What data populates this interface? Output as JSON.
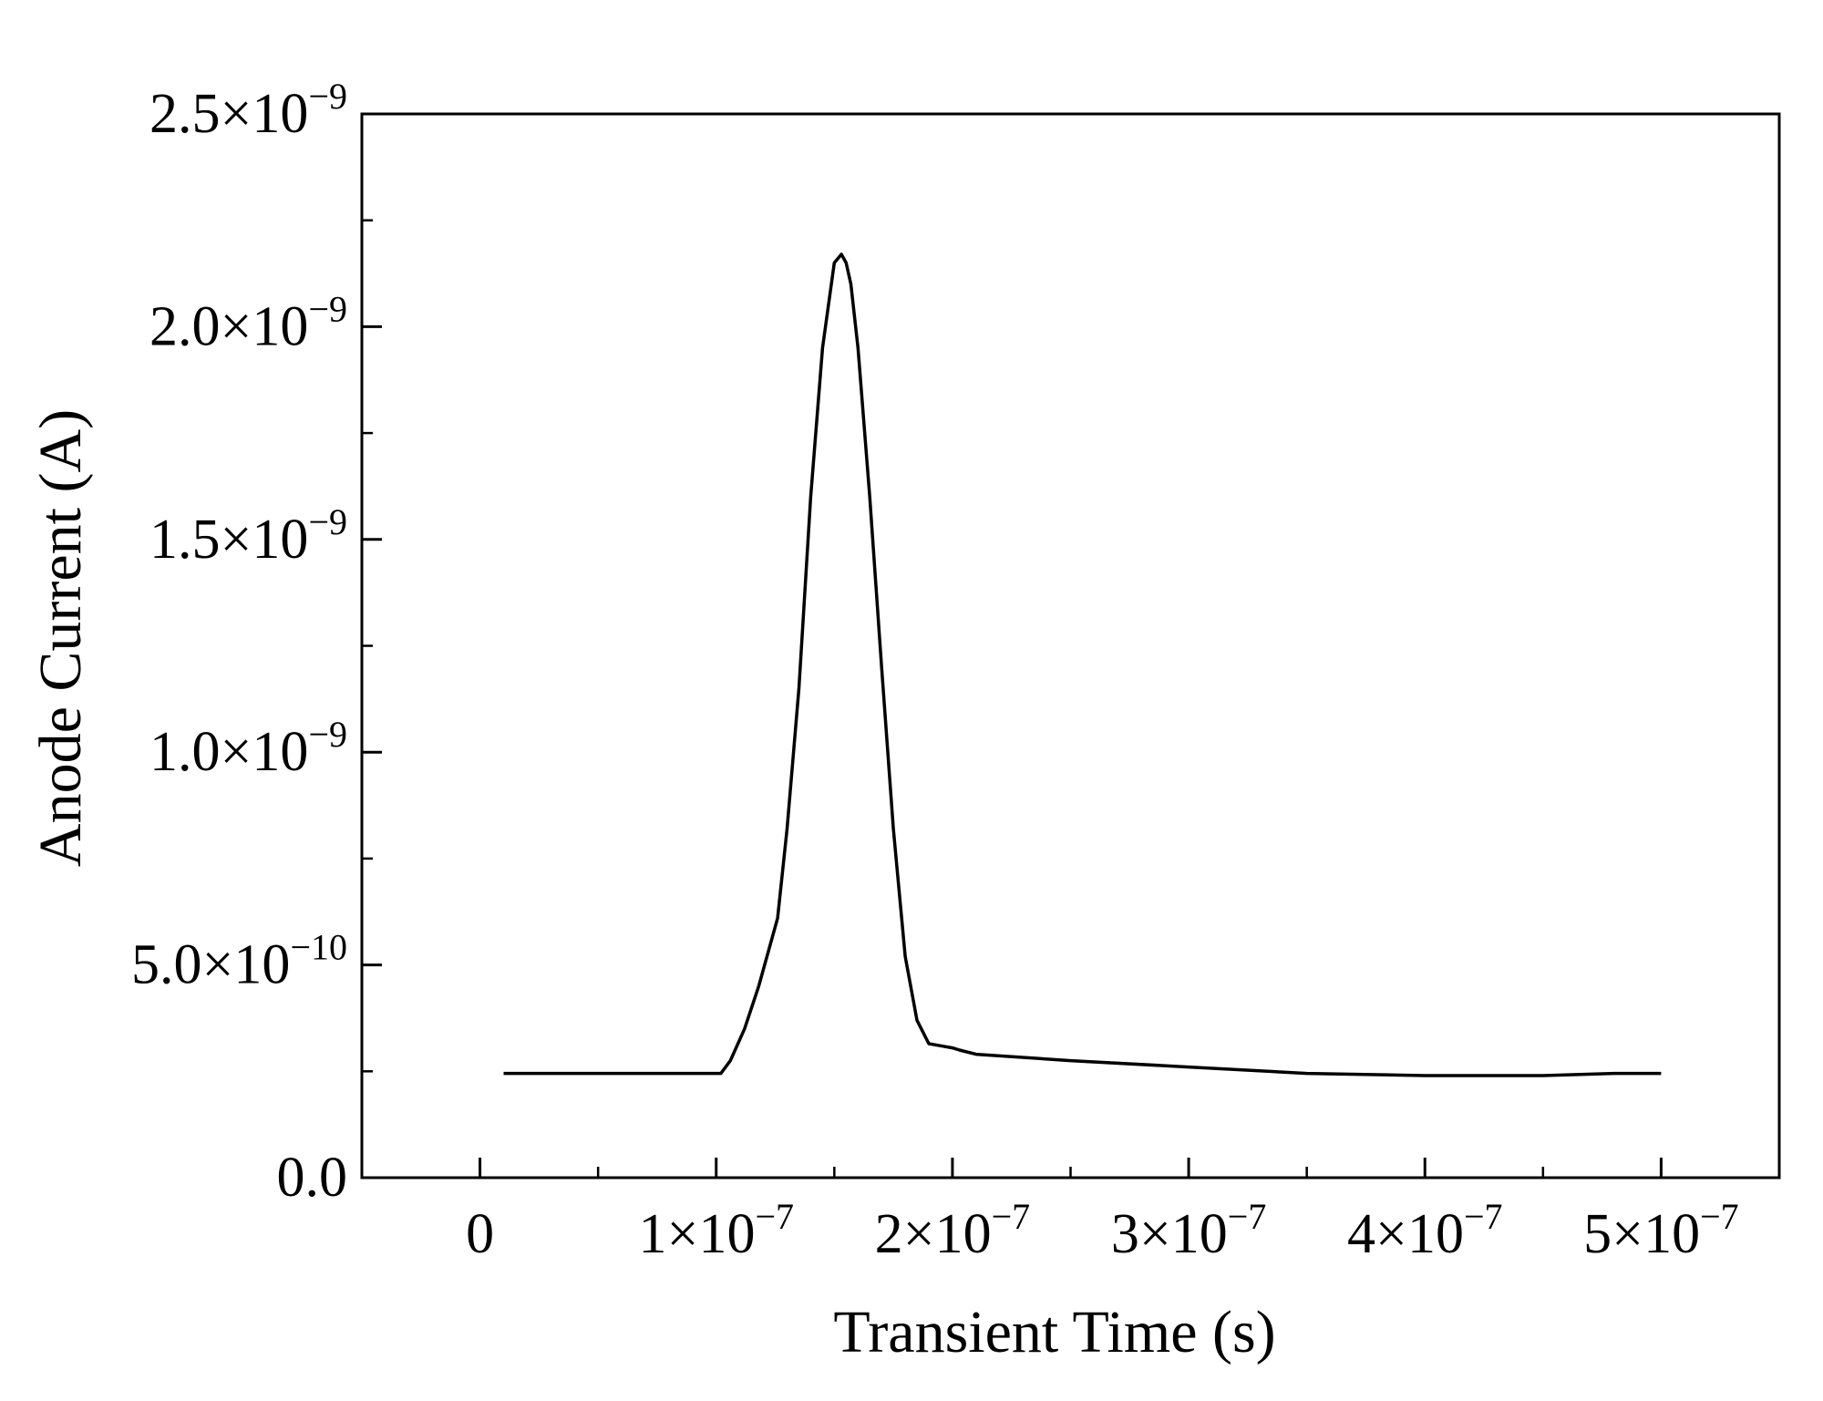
{
  "chart_data": {
    "type": "line",
    "title": "",
    "xlabel": "Transient Time (s)",
    "ylabel": "Anode Current (A)",
    "xlim": [
      -5e-08,
      5.5e-07
    ],
    "ylim": [
      0,
      2.5e-09
    ],
    "grid": false,
    "legend": "none",
    "x_ticks": [
      {
        "value": 0,
        "mantissa": "0",
        "exp": ""
      },
      {
        "value": 1e-07,
        "mantissa": "1×10",
        "exp": "−7"
      },
      {
        "value": 2e-07,
        "mantissa": "2×10",
        "exp": "−7"
      },
      {
        "value": 3e-07,
        "mantissa": "3×10",
        "exp": "−7"
      },
      {
        "value": 4e-07,
        "mantissa": "4×10",
        "exp": "−7"
      },
      {
        "value": 5e-07,
        "mantissa": "5×10",
        "exp": "−7"
      }
    ],
    "x_minor_ticks": [
      5e-08,
      1.5e-07,
      2.5e-07,
      3.5e-07,
      4.5e-07
    ],
    "y_ticks": [
      {
        "value": 0,
        "mantissa": "0.0",
        "exp": ""
      },
      {
        "value": 5e-10,
        "mantissa": "5.0×10",
        "exp": "−10"
      },
      {
        "value": 1e-09,
        "mantissa": "1.0×10",
        "exp": "−9"
      },
      {
        "value": 1.5e-09,
        "mantissa": "1.5×10",
        "exp": "−9"
      },
      {
        "value": 2e-09,
        "mantissa": "2.0×10",
        "exp": "−9"
      },
      {
        "value": 2.5e-09,
        "mantissa": "2.5×10",
        "exp": "−9"
      }
    ],
    "y_minor_ticks": [
      2.5e-10,
      7.5e-10,
      1.25e-09,
      1.75e-09,
      2.25e-09
    ],
    "series": [
      {
        "color": "#000000",
        "x": [
          1e-08,
          5e-08,
          1.02e-07,
          1.06e-07,
          1.12e-07,
          1.18e-07,
          1.26e-07,
          1.3e-07,
          1.35e-07,
          1.4e-07,
          1.45e-07,
          1.5e-07,
          1.53e-07,
          1.55e-07,
          1.57e-07,
          1.6e-07,
          1.65e-07,
          1.7e-07,
          1.75e-07,
          1.8e-07,
          1.85e-07,
          1.9e-07,
          1.95e-07,
          2e-07,
          2.03e-07,
          2.1e-07,
          2.5e-07,
          3e-07,
          3.5e-07,
          4e-07,
          4.5e-07,
          4.8e-07,
          5e-07
        ],
        "y": [
          2.45e-10,
          2.45e-10,
          2.45e-10,
          2.75e-10,
          3.5e-10,
          4.5e-10,
          6.1e-10,
          8.2e-10,
          1.15e-09,
          1.6e-09,
          1.95e-09,
          2.15e-09,
          2.17e-09,
          2.15e-09,
          2.1e-09,
          1.95e-09,
          1.6e-09,
          1.2e-09,
          8.2e-10,
          5.2e-10,
          3.7e-10,
          3.15e-10,
          3.1e-10,
          3.05e-10,
          3e-10,
          2.9e-10,
          2.75e-10,
          2.6e-10,
          2.45e-10,
          2.4e-10,
          2.4e-10,
          2.45e-10,
          2.45e-10
        ]
      }
    ]
  }
}
